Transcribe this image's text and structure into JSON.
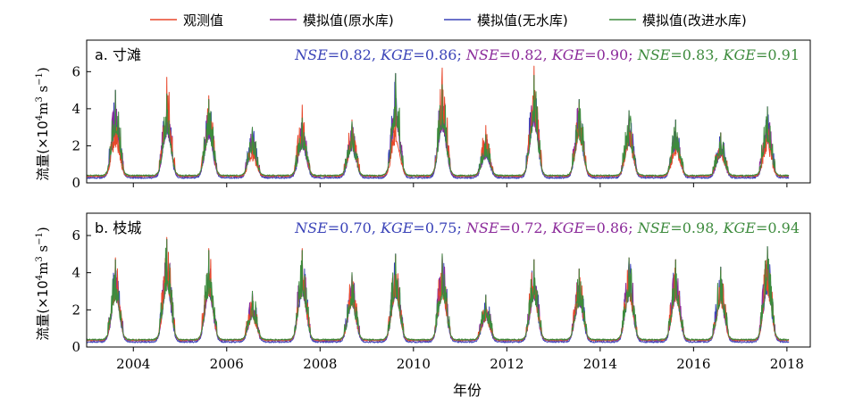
{
  "legend": [
    {
      "label": "观测值",
      "color": "#e8472b"
    },
    {
      "label": "模拟值(原水库)",
      "color": "#8b2a9a"
    },
    {
      "label": "模拟值(无水库)",
      "color": "#3a43b8"
    },
    {
      "label": "模拟值(改进水库)",
      "color": "#3d8b3d"
    }
  ],
  "xlabel": "年份",
  "ylabel_main": "流量(×10",
  "ylabel_sup": "4",
  "ylabel_unit": "m",
  "ylabel_unit_sup": "3",
  "ylabel_s": " s",
  "ylabel_s_sup": "−1",
  "ylabel_close": ")",
  "chart_data": [
    {
      "type": "line",
      "title": "a. 寸滩",
      "metrics": [
        {
          "series": "模拟值(无水库)",
          "color": "#3a43b8",
          "NSE": "0.82",
          "KGE": "0.86"
        },
        {
          "series": "模拟值(原水库)",
          "color": "#8b2a9a",
          "NSE": "0.82",
          "KGE": "0.90"
        },
        {
          "series": "模拟值(改进水库)",
          "color": "#3d8b3d",
          "NSE": "0.83",
          "KGE": "0.91"
        }
      ],
      "xlim": [
        2003.0,
        2018.5
      ],
      "ylim": [
        0,
        7.7
      ],
      "xticks": [
        2004,
        2006,
        2008,
        2010,
        2012,
        2014,
        2016,
        2018
      ],
      "yticks": [
        0,
        2,
        4,
        6
      ],
      "annual_peaks": [
        {
          "year": 2003,
          "peak_time": 2003.62,
          "observed": 3.6,
          "simulated": 5.0
        },
        {
          "year": 2004,
          "peak_time": 2004.72,
          "observed": 5.7,
          "simulated": 4.8
        },
        {
          "year": 2005,
          "peak_time": 2005.62,
          "observed": 4.7,
          "simulated": 4.5
        },
        {
          "year": 2006,
          "peak_time": 2006.55,
          "observed": 2.4,
          "simulated": 3.0
        },
        {
          "year": 2007,
          "peak_time": 2007.62,
          "observed": 4.2,
          "simulated": 3.5
        },
        {
          "year": 2008,
          "peak_time": 2008.68,
          "observed": 3.4,
          "simulated": 3.3
        },
        {
          "year": 2009,
          "peak_time": 2009.62,
          "observed": 4.1,
          "simulated": 5.9
        },
        {
          "year": 2010,
          "peak_time": 2010.62,
          "observed": 6.2,
          "simulated": 5.3
        },
        {
          "year": 2011,
          "peak_time": 2011.55,
          "observed": 3.1,
          "simulated": 2.6
        },
        {
          "year": 2012,
          "peak_time": 2012.58,
          "observed": 6.3,
          "simulated": 5.8
        },
        {
          "year": 2013,
          "peak_time": 2013.55,
          "observed": 4.3,
          "simulated": 4.5
        },
        {
          "year": 2014,
          "peak_time": 2014.62,
          "observed": 3.5,
          "simulated": 3.9
        },
        {
          "year": 2015,
          "peak_time": 2015.62,
          "observed": 2.9,
          "simulated": 3.4
        },
        {
          "year": 2016,
          "peak_time": 2016.58,
          "observed": 2.7,
          "simulated": 2.7
        },
        {
          "year": 2017,
          "peak_time": 2017.58,
          "observed": 3.2,
          "simulated": 4.1
        }
      ]
    },
    {
      "type": "line",
      "title": "b. 枝城",
      "metrics": [
        {
          "series": "模拟值(无水库)",
          "color": "#3a43b8",
          "NSE": "0.70",
          "KGE": "0.75"
        },
        {
          "series": "模拟值(原水库)",
          "color": "#8b2a9a",
          "NSE": "0.72",
          "KGE": "0.86"
        },
        {
          "series": "模拟值(改进水库)",
          "color": "#3d8b3d",
          "NSE": "0.98",
          "KGE": "0.94"
        }
      ],
      "xlim": [
        2003.0,
        2018.5
      ],
      "ylim": [
        0,
        7.2
      ],
      "xticks": [
        2004,
        2006,
        2008,
        2010,
        2012,
        2014,
        2016,
        2018
      ],
      "yticks": [
        0,
        2,
        4,
        6
      ],
      "annual_peaks": [
        {
          "year": 2003,
          "peak_time": 2003.62,
          "observed": 4.8,
          "simulated": 4.7
        },
        {
          "year": 2004,
          "peak_time": 2004.72,
          "observed": 5.9,
          "simulated": 5.8
        },
        {
          "year": 2005,
          "peak_time": 2005.62,
          "observed": 5.3,
          "simulated": 5.2
        },
        {
          "year": 2006,
          "peak_time": 2006.55,
          "observed": 2.8,
          "simulated": 3.0
        },
        {
          "year": 2007,
          "peak_time": 2007.62,
          "observed": 5.3,
          "simulated": 5.2
        },
        {
          "year": 2008,
          "peak_time": 2008.68,
          "observed": 4.0,
          "simulated": 4.0
        },
        {
          "year": 2009,
          "peak_time": 2009.62,
          "observed": 4.9,
          "simulated": 5.0
        },
        {
          "year": 2010,
          "peak_time": 2010.62,
          "observed": 5.0,
          "simulated": 5.0
        },
        {
          "year": 2011,
          "peak_time": 2011.55,
          "observed": 2.7,
          "simulated": 2.8
        },
        {
          "year": 2012,
          "peak_time": 2012.58,
          "observed": 4.7,
          "simulated": 4.7
        },
        {
          "year": 2013,
          "peak_time": 2013.55,
          "observed": 4.2,
          "simulated": 4.2
        },
        {
          "year": 2014,
          "peak_time": 2014.62,
          "observed": 4.8,
          "simulated": 4.8
        },
        {
          "year": 2015,
          "peak_time": 2015.62,
          "observed": 4.7,
          "simulated": 4.7
        },
        {
          "year": 2016,
          "peak_time": 2016.58,
          "observed": 4.1,
          "simulated": 4.3
        },
        {
          "year": 2017,
          "peak_time": 2017.58,
          "observed": 5.2,
          "simulated": 5.4
        }
      ]
    }
  ]
}
